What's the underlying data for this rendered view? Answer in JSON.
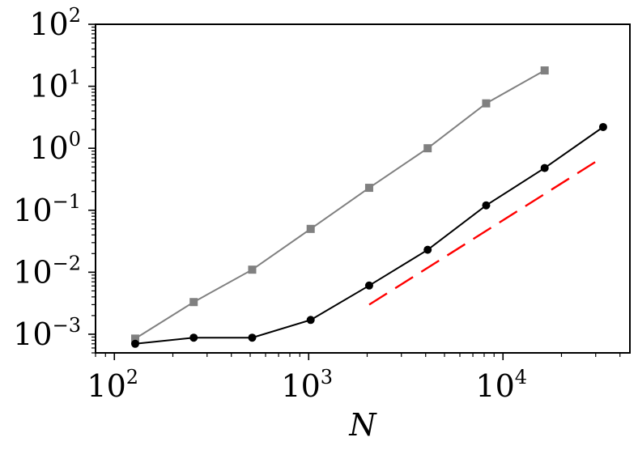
{
  "chart_data": {
    "type": "line",
    "title": "",
    "xlabel": "N",
    "ylabel": "",
    "xscale": "log",
    "yscale": "log",
    "xlim": [
      80,
      45000
    ],
    "ylim": [
      0.0005,
      100
    ],
    "grid": false,
    "legend": "none",
    "x_ticks": [
      {
        "value": 100,
        "base": "10",
        "exp": "2"
      },
      {
        "value": 1000,
        "base": "10",
        "exp": "3"
      },
      {
        "value": 10000,
        "base": "10",
        "exp": "4"
      }
    ],
    "y_ticks": [
      {
        "value": 0.001,
        "base": "10",
        "exp": "−3"
      },
      {
        "value": 0.01,
        "base": "10",
        "exp": "−2"
      },
      {
        "value": 0.1,
        "base": "10",
        "exp": "−1"
      },
      {
        "value": 1,
        "base": "10",
        "exp": "0"
      },
      {
        "value": 10,
        "base": "10",
        "exp": "1"
      },
      {
        "value": 100,
        "base": "10",
        "exp": "2"
      }
    ],
    "series": [
      {
        "color": "#808080",
        "marker": "square",
        "x": [
          128,
          256,
          512,
          1024,
          2048,
          4096,
          8192,
          16384
        ],
        "y": [
          0.00085,
          0.0033,
          0.011,
          0.05,
          0.23,
          1.0,
          5.3,
          18
        ]
      },
      {
        "color": "#000000",
        "marker": "circle",
        "x": [
          128,
          256,
          512,
          1024,
          2048,
          4096,
          8192,
          16384,
          32768
        ],
        "y": [
          0.0007,
          0.00088,
          0.00088,
          0.0017,
          0.0061,
          0.023,
          0.12,
          0.48,
          2.2
        ]
      },
      {
        "color": "#ff0000",
        "marker": "none",
        "linestyle": "dashed",
        "x": [
          2048,
          32768
        ],
        "y": [
          0.003,
          0.72
        ]
      }
    ]
  }
}
